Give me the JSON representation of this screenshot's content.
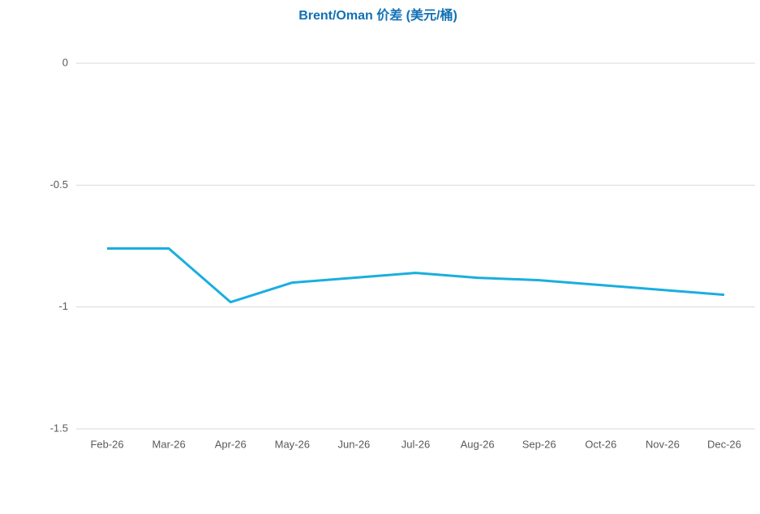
{
  "chart_data": {
    "type": "line",
    "title": "Brent/Oman 价差 (美元/桶)",
    "categories": [
      "Feb-26",
      "Mar-26",
      "Apr-26",
      "May-26",
      "Jun-26",
      "Jul-26",
      "Aug-26",
      "Sep-26",
      "Oct-26",
      "Nov-26",
      "Dec-26"
    ],
    "values": [
      -0.76,
      -0.76,
      -0.98,
      -0.9,
      -0.88,
      -0.86,
      -0.88,
      -0.89,
      -0.91,
      -0.93,
      -0.95
    ],
    "color": "#1aaee0",
    "ylim": [
      -1.5,
      0
    ],
    "yticks": [
      0,
      -0.5,
      -1,
      -1.5
    ],
    "grid": true
  }
}
